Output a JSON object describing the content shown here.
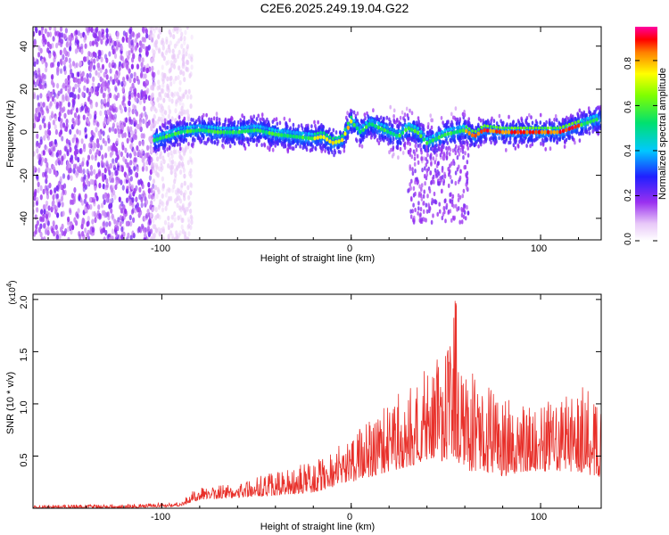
{
  "title": "C2E6.2025.249.19.04.G22",
  "chart_data": [
    {
      "type": "heatmap",
      "title": "C2E6.2025.249.19.04.G22",
      "xlabel": "Height of straight line (km)",
      "ylabel": "Frequency (Hz)",
      "xlim": [
        -168,
        132
      ],
      "ylim": [
        -50,
        49
      ],
      "xticks": [
        -100,
        0,
        100
      ],
      "xtick_labels": [
        "-100",
        "0",
        "100"
      ],
      "yticks": [
        -40,
        -20,
        0,
        20,
        40
      ],
      "ytick_labels": [
        "-40",
        "-20",
        "0",
        "20",
        "40"
      ],
      "ridge": {
        "x": [
          -105,
          -90,
          -80,
          -70,
          -60,
          -50,
          -40,
          -30,
          -20,
          -15,
          -10,
          -5,
          0,
          5,
          10,
          15,
          20,
          25,
          30,
          35,
          40,
          45,
          50,
          55,
          60,
          65,
          70,
          80,
          90,
          100,
          110,
          120,
          130
        ],
        "y": [
          -4,
          0,
          1,
          0,
          0,
          1,
          -1,
          -2,
          -3,
          -2,
          -5,
          -4,
          5,
          0,
          4,
          2,
          0,
          -2,
          2,
          0,
          -5,
          -3,
          -1,
          0,
          1,
          -2,
          1,
          0,
          0,
          0,
          0,
          3,
          6
        ]
      },
      "colorbar": {
        "label": "Normalized spectral amplitude",
        "range": [
          0,
          0.95
        ],
        "ticks": [
          0.0,
          0.2,
          0.4,
          0.6,
          0.8
        ],
        "tick_labels": [
          "0.0",
          "0.2",
          "0.4",
          "0.6",
          "0.8"
        ]
      }
    },
    {
      "type": "line",
      "title": "",
      "xlabel": "Height of straight line (km)",
      "ylabel": "SNR (10 * v/v)",
      "exponent_label": "(x10",
      "exponent_power": "4",
      "exponent_close": ")",
      "xlim": [
        -168,
        132
      ],
      "ylim": [
        0,
        2.05
      ],
      "xticks": [
        -100,
        0,
        100
      ],
      "xtick_labels": [
        "-100",
        "0",
        "100"
      ],
      "yticks": [
        0.5,
        1.0,
        1.5,
        2.0
      ],
      "ytick_labels": [
        "0.5",
        "1.0",
        "1.5",
        "2.0"
      ],
      "series": [
        {
          "name": "SNR",
          "color": "#e8302a",
          "envelope_x": [
            -168,
            -120,
            -100,
            -90,
            -85,
            -80,
            -60,
            -40,
            -20,
            -10,
            0,
            10,
            20,
            30,
            40,
            50,
            55,
            60,
            70,
            80,
            90,
            100,
            110,
            120,
            130
          ],
          "envelope_low": [
            0.0,
            0.0,
            0.01,
            0.02,
            0.05,
            0.08,
            0.1,
            0.12,
            0.15,
            0.2,
            0.25,
            0.3,
            0.35,
            0.4,
            0.45,
            0.45,
            0.4,
            0.35,
            0.35,
            0.3,
            0.35,
            0.35,
            0.35,
            0.35,
            0.3
          ],
          "envelope_high": [
            0.03,
            0.04,
            0.05,
            0.06,
            0.15,
            0.2,
            0.25,
            0.35,
            0.45,
            0.55,
            0.7,
            0.85,
            1.0,
            1.2,
            1.35,
            1.5,
            2.0,
            1.4,
            1.2,
            1.1,
            1.0,
            1.0,
            1.05,
            1.2,
            1.15
          ]
        }
      ]
    }
  ]
}
